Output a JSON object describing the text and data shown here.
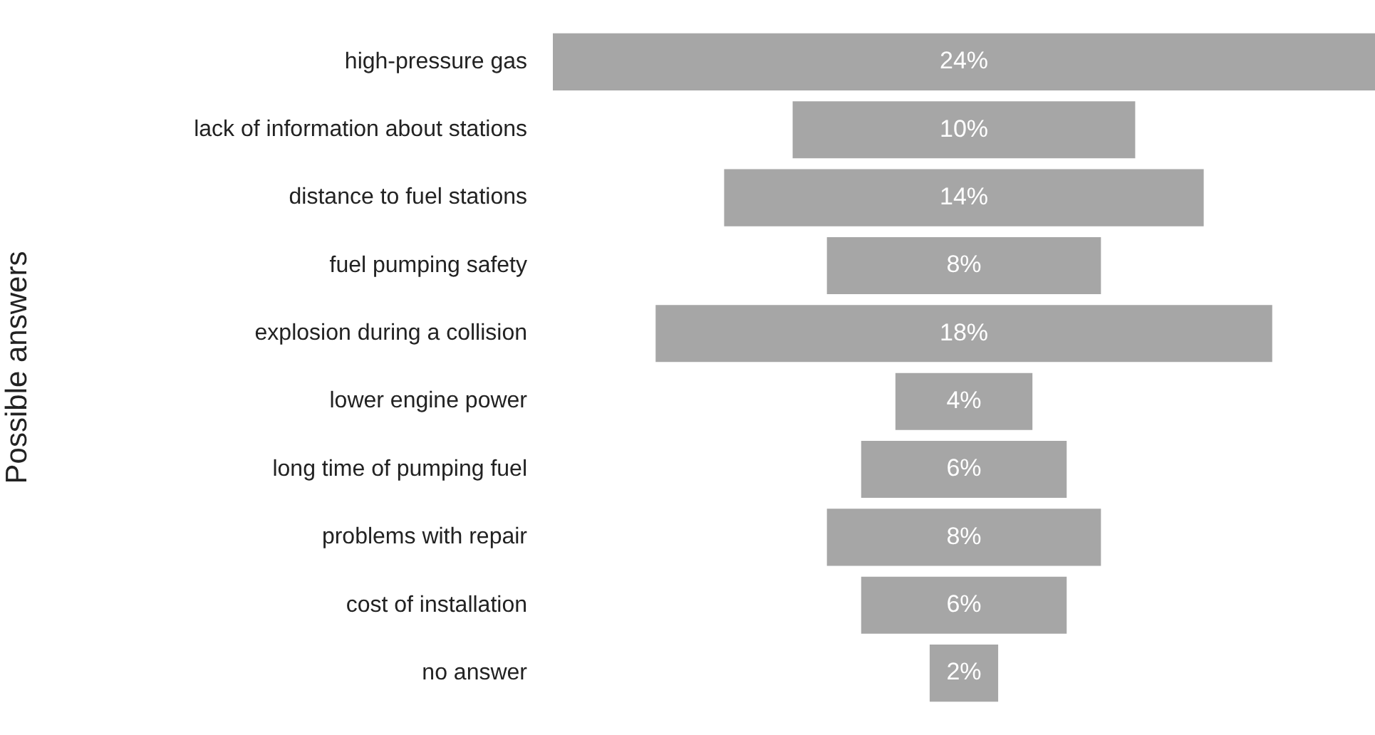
{
  "chart_data": {
    "type": "other",
    "ylabel": "Possible answers",
    "categories": [
      "high-pressure gas",
      "lack of information about stations",
      "distance to fuel stations",
      "fuel pumping safety",
      "explosion during a collision",
      "lower engine power",
      "long time of pumping fuel",
      "problems with repair",
      "cost of installation",
      "no answer"
    ],
    "values": [
      24,
      10,
      14,
      8,
      18,
      4,
      6,
      8,
      6,
      2
    ],
    "value_labels": [
      "24%",
      "10%",
      "14%",
      "8%",
      "18%",
      "4%",
      "6%",
      "8%",
      "6%",
      "2%"
    ],
    "color": "#a6a6a6"
  }
}
